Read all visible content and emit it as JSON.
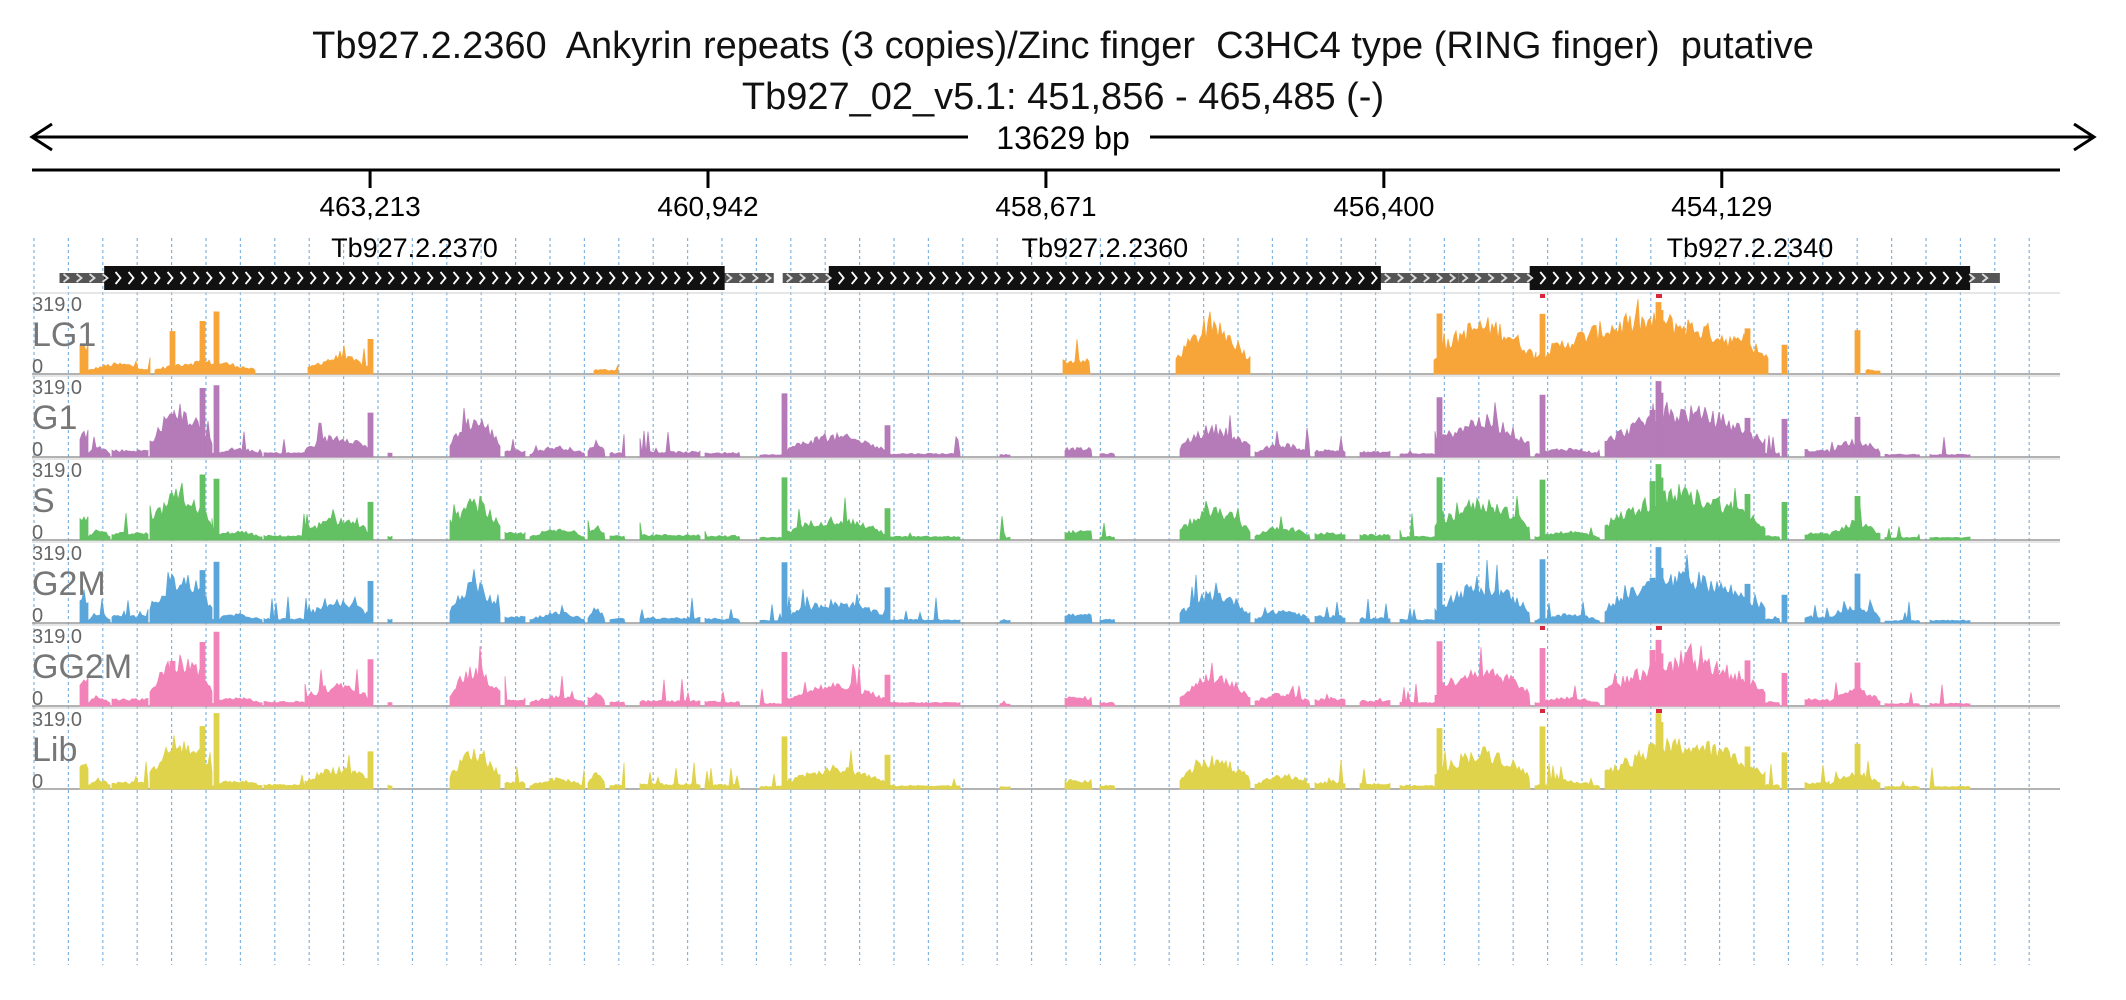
{
  "title": "Tb927.2.2360  Ankyrin repeats (3 copies)/Zinc finger  C3HC4 type (RING finger)  putative",
  "locus": "Tb927_02_v5.1: 451,856 - 465,485 (-)",
  "span_label": "13629 bp",
  "region": {
    "start": 451856,
    "end": 465485,
    "strand": "-"
  },
  "ruler_ticks": [
    "463,213",
    "460,942",
    "458,671",
    "456,400",
    "454,129"
  ],
  "ruler_tick_positions": [
    463213,
    460942,
    458671,
    456400,
    454129
  ],
  "genes": [
    {
      "name": "Tb927.2.2370",
      "utr_start": 465300,
      "utr_end": 460500,
      "cds_start": 465000,
      "cds_end": 460830
    },
    {
      "name": "Tb927.2.2360",
      "utr_start": 460440,
      "utr_end": 455900,
      "cds_start": 460130,
      "cds_end": 456420
    },
    {
      "name": "Tb927.2.2340",
      "utr_start": 455900,
      "utr_end": 452260,
      "cds_start": 455420,
      "cds_end": 452460
    }
  ],
  "tracks": [
    {
      "label": "LG1",
      "max": "319.0",
      "min": "0",
      "color": "#f7a539"
    },
    {
      "label": "G1",
      "max": "319.0",
      "min": "0",
      "color": "#b47bb8"
    },
    {
      "label": "S",
      "max": "319.0",
      "min": "0",
      "color": "#63c063"
    },
    {
      "label": "G2M",
      "max": "319.0",
      "min": "0",
      "color": "#5aa6db"
    },
    {
      "label": "GG2M",
      "max": "319.0",
      "min": "0",
      "color": "#f283b8"
    },
    {
      "label": "Lib",
      "max": "319.0",
      "min": "0",
      "color": "#dfd34c"
    }
  ],
  "overflow_color": "#d7263d"
}
